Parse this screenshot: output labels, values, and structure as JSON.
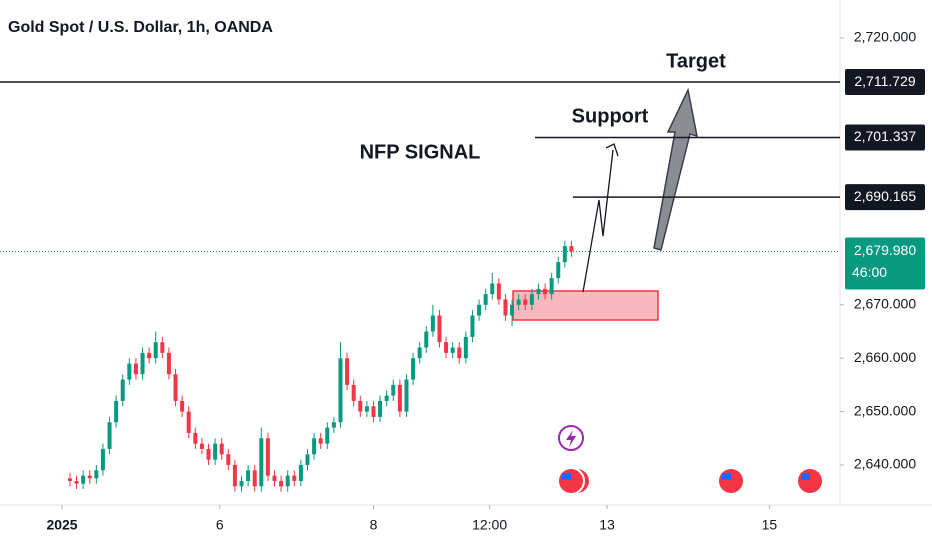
{
  "chart_data": {
    "type": "candlestick",
    "title": "Gold Spot / U.S. Dollar, 1h, OANDA",
    "up_color": "#089981",
    "down_color": "#f23645",
    "x": [
      0,
      1,
      2,
      3,
      4,
      5,
      6,
      7,
      8,
      9,
      10,
      11,
      12,
      13,
      14,
      15,
      16,
      17,
      18,
      19,
      20,
      21,
      22,
      23,
      24,
      25,
      26,
      27,
      28,
      29,
      30,
      31,
      32,
      33,
      34,
      35,
      36,
      37,
      38,
      39,
      40,
      41,
      42,
      43,
      44,
      45,
      46,
      47,
      48,
      49,
      50,
      51,
      52,
      53,
      54,
      55,
      56,
      57,
      58,
      59,
      60,
      61,
      62,
      63,
      64,
      65,
      66,
      67,
      68,
      69,
      70,
      71,
      72,
      73,
      74,
      75,
      76
    ],
    "open": [
      2637.5,
      2637,
      2636.5,
      2638,
      2637.5,
      2639,
      2643,
      2648,
      2652,
      2656,
      2659,
      2657,
      2661,
      2660,
      2663,
      2661,
      2657,
      2652,
      2650,
      2646,
      2644,
      2643,
      2641,
      2644,
      2642,
      2640,
      2636,
      2637,
      2639,
      2636,
      2645,
      2638,
      2637,
      2636,
      2638,
      2637,
      2640,
      2642,
      2645,
      2644,
      2647,
      2648,
      2660,
      2655,
      2652,
      2650,
      2651,
      2649,
      2652,
      2653,
      2655,
      2650,
      2656,
      2660,
      2662,
      2665,
      2668,
      2663,
      2661,
      2662,
      2660,
      2664,
      2668,
      2670,
      2672,
      2674,
      2671,
      2668,
      2670,
      2671,
      2670,
      2672,
      2673,
      2672,
      2675,
      2678,
      2681
    ],
    "high": [
      2638.5,
      2638,
      2639,
      2639,
      2640,
      2644,
      2649,
      2653,
      2657,
      2660,
      2660,
      2662,
      2662,
      2665,
      2664,
      2662,
      2658,
      2653,
      2651,
      2647,
      2645,
      2644,
      2645,
      2645,
      2643,
      2641,
      2638,
      2640,
      2640,
      2647,
      2646,
      2639,
      2638,
      2639,
      2639,
      2641,
      2643,
      2646,
      2646,
      2648,
      2649,
      2663,
      2661,
      2656,
      2653,
      2652,
      2652,
      2653,
      2654,
      2656,
      2656,
      2657,
      2661,
      2663,
      2666,
      2670,
      2669,
      2664,
      2663,
      2663,
      2665,
      2669,
      2671,
      2673,
      2676,
      2675,
      2672,
      2671,
      2672,
      2672,
      2673,
      2674,
      2674,
      2676,
      2679,
      2682,
      2682
    ],
    "low": [
      2636,
      2635.5,
      2635.5,
      2636.5,
      2636.5,
      2638,
      2642,
      2647,
      2651,
      2655,
      2656,
      2656,
      2659,
      2659,
      2660,
      2656,
      2651,
      2649,
      2645,
      2643,
      2642,
      2640,
      2640,
      2641,
      2639,
      2635,
      2635,
      2636,
      2635,
      2635,
      2637,
      2636,
      2635,
      2635,
      2636,
      2636,
      2639,
      2641,
      2643,
      2643,
      2646,
      2647,
      2654,
      2651,
      2649,
      2649,
      2648,
      2648,
      2651,
      2652,
      2649,
      2649,
      2655,
      2659,
      2661,
      2664,
      2662,
      2660,
      2660,
      2659,
      2659,
      2663,
      2667,
      2669,
      2671,
      2670,
      2667,
      2666,
      2669,
      2669,
      2669,
      2671,
      2671,
      2671,
      2674,
      2677,
      2679
    ],
    "close": [
      2637,
      2636.5,
      2638,
      2637.5,
      2639,
      2643,
      2648,
      2652,
      2656,
      2659,
      2657,
      2661,
      2660,
      2663,
      2661,
      2657,
      2652,
      2650,
      2646,
      2644,
      2643,
      2641,
      2644,
      2642,
      2640,
      2636,
      2637,
      2639,
      2636,
      2645,
      2638,
      2637,
      2636,
      2638,
      2637,
      2640,
      2642,
      2645,
      2644,
      2647,
      2648,
      2660,
      2655,
      2652,
      2650,
      2651,
      2649,
      2652,
      2653,
      2655,
      2650,
      2656,
      2660,
      2662,
      2665,
      2668,
      2663,
      2661,
      2662,
      2660,
      2664,
      2668,
      2670,
      2672,
      2674,
      2671,
      2668,
      2670,
      2671,
      2670,
      2672,
      2673,
      2672,
      2675,
      2678,
      2681,
      2680
    ],
    "xlim": [
      -10.6,
      116.7
    ],
    "xticks": [
      {
        "value": -1.2,
        "label": "2025"
      },
      {
        "value": 22.7,
        "label": "6"
      },
      {
        "value": 46,
        "label": "8"
      },
      {
        "value": 63.6,
        "label": "12:00"
      },
      {
        "value": 81.4,
        "label": "13"
      },
      {
        "value": 106,
        "label": "15"
      }
    ],
    "ylim": [
      2632.5,
      2727.1
    ],
    "yticks": [
      {
        "value": 2640,
        "label": "2,640.000"
      },
      {
        "value": 2650,
        "label": "2,650.000"
      },
      {
        "value": 2660,
        "label": "2,660.000"
      },
      {
        "value": 2670,
        "label": "2,670.000"
      },
      {
        "value": 2720,
        "label": "2,720.000"
      }
    ],
    "price_lines": [
      {
        "value": 2711.729,
        "label": "2,711.729"
      },
      {
        "value": 2701.337,
        "label": "2,701.337"
      },
      {
        "value": 2690.165,
        "label": "2,690.165"
      }
    ],
    "current_price": {
      "value": 2679.98,
      "label": "2,679.980",
      "color": "#089981"
    },
    "countdown": "46:00",
    "annotations": [
      "NFP SIGNAL",
      "Support",
      "Target"
    ]
  }
}
